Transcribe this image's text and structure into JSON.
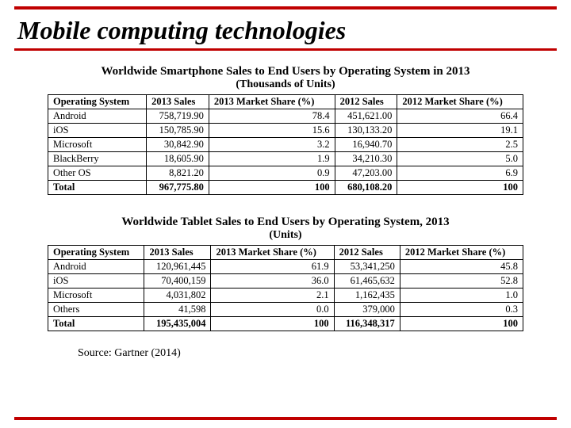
{
  "colors": {
    "accent": "#c00000",
    "text": "#000000",
    "bg": "#ffffff"
  },
  "title": "Mobile computing technologies",
  "smartphone": {
    "heading": "Worldwide Smartphone Sales to End Users by Operating System in 2013",
    "sub": "(Thousands of Units)",
    "columns": [
      "Operating System",
      "2013 Sales",
      "2013 Market Share (%)",
      "2012 Sales",
      "2012 Market Share (%)"
    ],
    "rows": [
      [
        "Android",
        "758,719.90",
        "78.4",
        "451,621.00",
        "66.4"
      ],
      [
        "iOS",
        "150,785.90",
        "15.6",
        "130,133.20",
        "19.1"
      ],
      [
        "Microsoft",
        "30,842.90",
        "3.2",
        "16,940.70",
        "2.5"
      ],
      [
        "BlackBerry",
        "18,605.90",
        "1.9",
        "34,210.30",
        "5.0"
      ],
      [
        "Other OS",
        "8,821.20",
        "0.9",
        "47,203.00",
        "6.9"
      ],
      [
        "Total",
        "967,775.80",
        "100",
        "680,108.20",
        "100"
      ]
    ]
  },
  "tablet": {
    "heading": "Worldwide Tablet Sales to End Users by Operating System, 2013",
    "sub": "(Units)",
    "columns": [
      "Operating System",
      "2013 Sales",
      "2013 Market Share (%)",
      "2012 Sales",
      "2012 Market Share (%)"
    ],
    "rows": [
      [
        "Android",
        "120,961,445",
        "61.9",
        "53,341,250",
        "45.8"
      ],
      [
        "iOS",
        "70,400,159",
        "36.0",
        "61,465,632",
        "52.8"
      ],
      [
        "Microsoft",
        "4,031,802",
        "2.1",
        "1,162,435",
        "1.0"
      ],
      [
        "Others",
        "41,598",
        "0.0",
        "379,000",
        "0.3"
      ],
      [
        "Total",
        "195,435,004",
        "100",
        "116,348,317",
        "100"
      ]
    ]
  },
  "source": "Source: Gartner (2014)"
}
